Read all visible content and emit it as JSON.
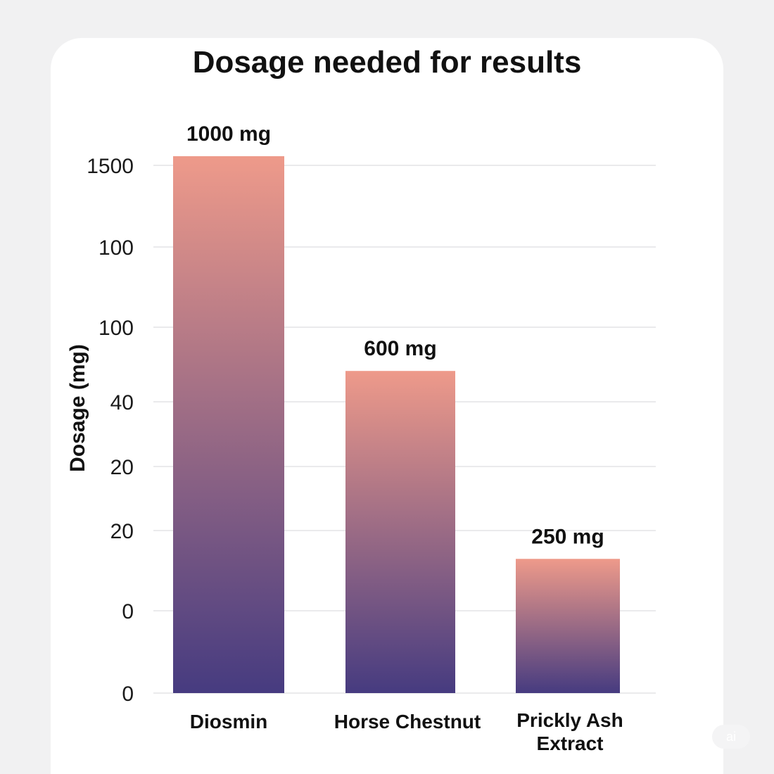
{
  "chart_data": {
    "type": "bar",
    "title": "Dosage needed for results",
    "ylabel": "Dosage (mg)",
    "xlabel": "",
    "categories": [
      "Diosmin",
      "Horse Chestnut",
      "Prickly Ash Extract"
    ],
    "category_lines": [
      [
        "Diosmin"
      ],
      [
        "Horse Chestnut"
      ],
      [
        "Prickly Ash",
        "Extract"
      ]
    ],
    "values": [
      1000,
      600,
      250
    ],
    "value_labels": [
      "1000 mg",
      "600 mg",
      "250 mg"
    ],
    "y_tick_labels": [
      "0",
      "0",
      "20",
      "20",
      "40",
      "100",
      "100",
      "1500"
    ],
    "grid": true,
    "colors": {
      "bar_top": "#ee9a8a",
      "bar_bottom": "#463b80"
    }
  },
  "watermark": "ai"
}
